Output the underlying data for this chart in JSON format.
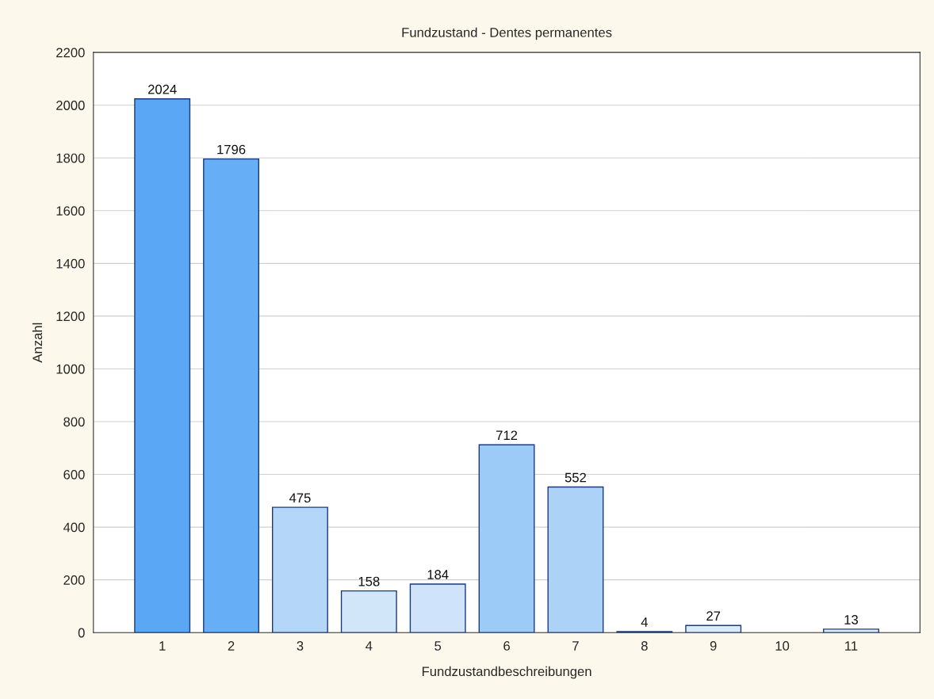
{
  "chart_data": {
    "type": "bar",
    "title": "Fundzustand - Dentes permanentes",
    "xlabel": "Fundzustandbeschreibungen",
    "ylabel": "Anzahl",
    "categories": [
      "1",
      "2",
      "3",
      "4",
      "5",
      "6",
      "7",
      "8",
      "9",
      "10",
      "11"
    ],
    "values": [
      2024,
      1796,
      475,
      158,
      184,
      712,
      552,
      4,
      27,
      null,
      13
    ],
    "colors": [
      "#5aa8f5",
      "#66aef5",
      "#b4d6f8",
      "#d2e6fa",
      "#cfe4fa",
      "#9ccbf7",
      "#acd2f8",
      "#e2effc",
      "#dbebfb",
      "#e0eefb",
      "#deedfb"
    ],
    "ylim": [
      0,
      2200
    ],
    "yticks": [
      0,
      200,
      400,
      600,
      800,
      1000,
      1200,
      1400,
      1600,
      1800,
      2000,
      2200
    ],
    "grid": "y",
    "data_labels": true
  }
}
